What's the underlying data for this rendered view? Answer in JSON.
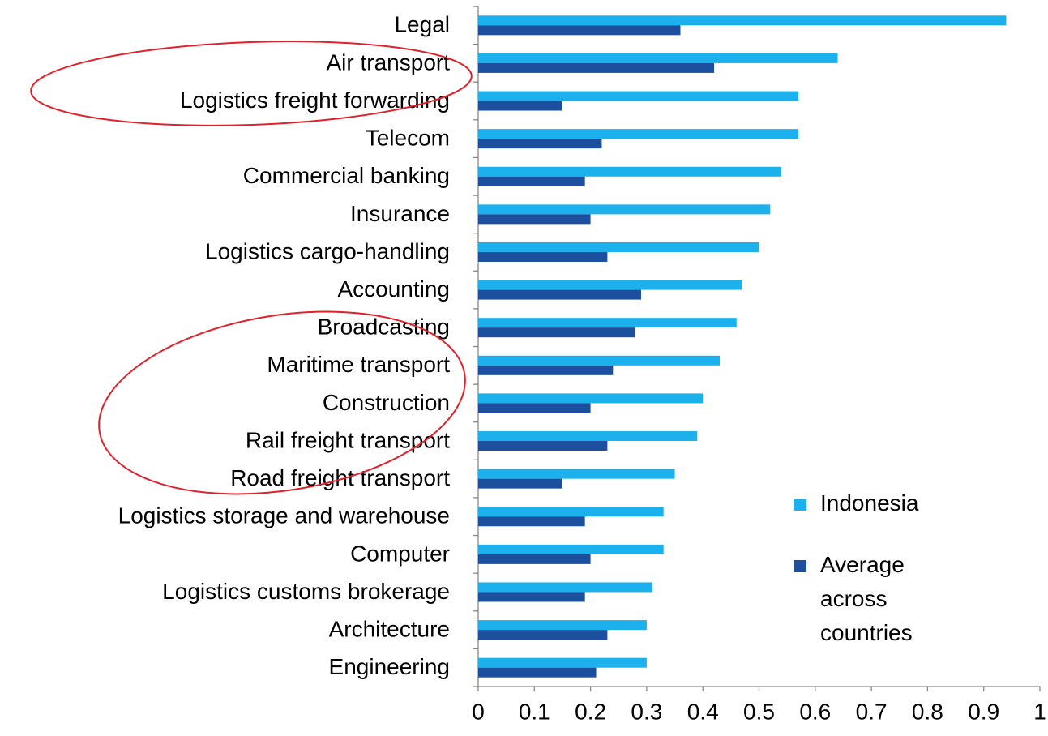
{
  "chart_data": {
    "type": "hbar",
    "categories": [
      "Legal",
      "Air transport",
      "Logistics freight forwarding",
      "Telecom",
      "Commercial banking",
      "Insurance",
      "Logistics cargo-handling",
      "Accounting",
      "Broadcasting",
      "Maritime transport",
      "Construction",
      "Rail freight transport",
      "Road freight transport",
      "Logistics storage and warehouse",
      "Computer",
      "Logistics customs brokerage",
      "Architecture",
      "Engineering"
    ],
    "series": [
      {
        "name": "Indonesia",
        "color": "#1cb0ec",
        "values": [
          0.94,
          0.64,
          0.57,
          0.57,
          0.54,
          0.52,
          0.5,
          0.47,
          0.46,
          0.43,
          0.4,
          0.39,
          0.35,
          0.33,
          0.33,
          0.31,
          0.3,
          0.3
        ]
      },
      {
        "name": "Average across countries",
        "color": "#1c4f9e",
        "values": [
          0.36,
          0.42,
          0.15,
          0.22,
          0.19,
          0.2,
          0.23,
          0.29,
          0.28,
          0.24,
          0.2,
          0.23,
          0.15,
          0.19,
          0.2,
          0.19,
          0.23,
          0.21
        ]
      }
    ],
    "xlim": [
      0,
      1
    ],
    "xticks": [
      0,
      0.1,
      0.2,
      0.3,
      0.4,
      0.5,
      0.6,
      0.7,
      0.8,
      0.9,
      1
    ],
    "legend": "right"
  }
}
